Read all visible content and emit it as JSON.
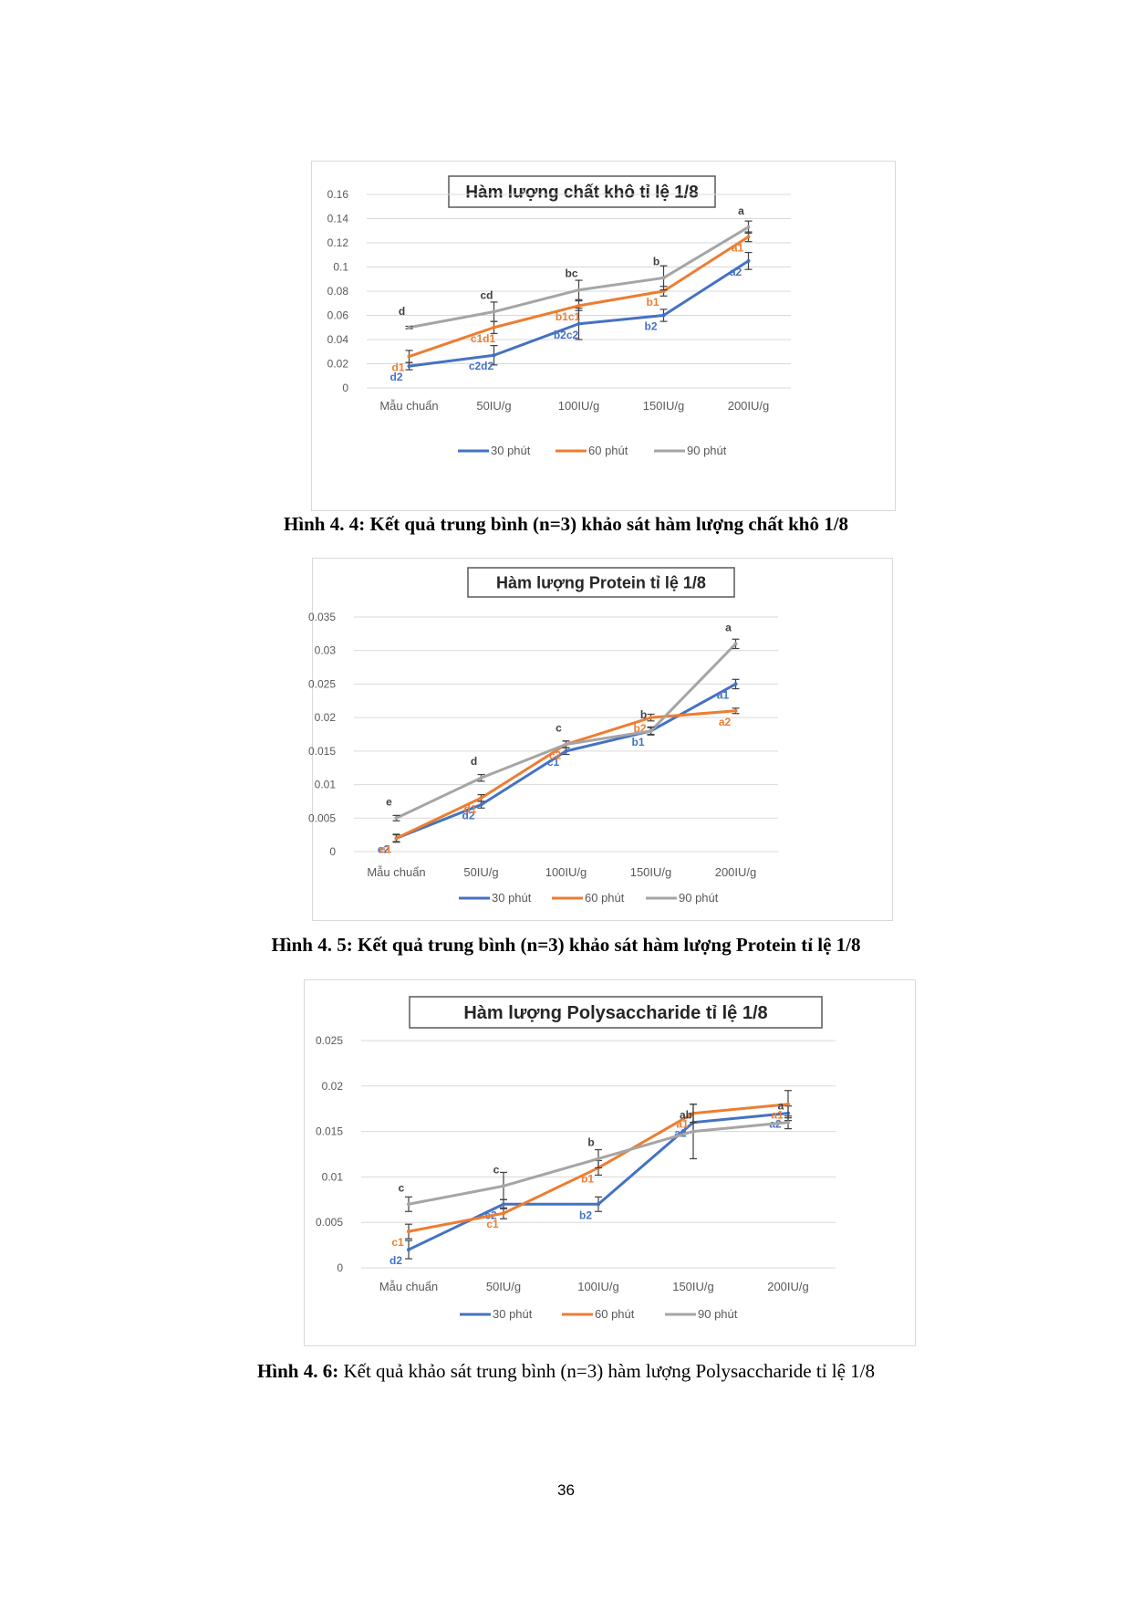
{
  "chart_data": [
    {
      "type": "line",
      "title": "Hàm lượng chất khô tỉ lệ 1/8",
      "categories": [
        "Mẫu chuẩn",
        "50IU/g",
        "100IU/g",
        "150IU/g",
        "200IU/g"
      ],
      "yticks": [
        "0",
        "0.02",
        "0.04",
        "0.06",
        "0.08",
        "0.1",
        "0.12",
        "0.14",
        "0.16"
      ],
      "ylim": [
        0,
        0.16
      ],
      "legend_position": "bottom",
      "series": [
        {
          "name": "30 phút",
          "color": "#4472c4",
          "values": [
            0.018,
            0.027,
            0.053,
            0.06,
            0.105
          ],
          "errors": [
            0.003,
            0.008,
            0.013,
            0.005,
            0.007
          ],
          "labels": [
            "d2",
            "c2d2",
            "b2c2",
            "b2",
            "a2"
          ]
        },
        {
          "name": "60 phút",
          "color": "#ed7d31",
          "values": [
            0.026,
            0.05,
            0.068,
            0.08,
            0.125
          ],
          "errors": [
            0.005,
            0.005,
            0.004,
            0.004,
            0.004
          ],
          "labels": [
            "d1",
            "c1d1",
            "b1c1",
            "b1",
            "a1"
          ]
        },
        {
          "name": "90 phút",
          "color": "#a5a5a5",
          "values": [
            0.05,
            0.063,
            0.081,
            0.091,
            0.133
          ],
          "errors": [
            0.001,
            0.008,
            0.008,
            0.01,
            0.005
          ],
          "labels": [
            "d",
            "cd",
            "bc",
            "b",
            "a"
          ]
        }
      ]
    },
    {
      "type": "line",
      "title": "Hàm lượng Protein tỉ lệ 1/8",
      "categories": [
        "Mẫu chuẩn",
        "50IU/g",
        "100IU/g",
        "150IU/g",
        "200IU/g"
      ],
      "yticks": [
        "0",
        "0.005",
        "0.01",
        "0.015",
        "0.02",
        "0.025",
        "0.03",
        "0.035"
      ],
      "ylim": [
        0,
        0.035
      ],
      "legend_position": "bottom",
      "series": [
        {
          "name": "30 phút",
          "color": "#4472c4",
          "values": [
            0.002,
            0.007,
            0.015,
            0.018,
            0.025
          ],
          "errors": [
            0.0005,
            0.0005,
            0.0005,
            0.0005,
            0.0007
          ],
          "labels": [
            "e2",
            "d2",
            "c1",
            "b1",
            "a1"
          ]
        },
        {
          "name": "60 phút",
          "color": "#ed7d31",
          "values": [
            0.002,
            0.008,
            0.016,
            0.02,
            0.021
          ],
          "errors": [
            0.0006,
            0.0005,
            0.0005,
            0.0005,
            0.0004
          ],
          "labels": [
            "e1",
            "d1",
            "c2",
            "b2",
            "a2"
          ]
        },
        {
          "name": "90 phút",
          "color": "#a5a5a5",
          "values": [
            0.005,
            0.011,
            0.016,
            0.018,
            0.031
          ],
          "errors": [
            0.0004,
            0.0005,
            0.0005,
            0.0006,
            0.0007
          ],
          "labels": [
            "e",
            "d",
            "c",
            "b",
            "a"
          ]
        }
      ]
    },
    {
      "type": "line",
      "title": "Hàm lượng Polysaccharide tỉ lệ 1/8",
      "categories": [
        "Mẫu chuẩn",
        "50IU/g",
        "100IU/g",
        "150IU/g",
        "200IU/g"
      ],
      "yticks": [
        "0",
        "0.005",
        "0.01",
        "0.015",
        "0.02",
        "0.025"
      ],
      "ylim": [
        0,
        0.025
      ],
      "legend_position": "bottom",
      "series": [
        {
          "name": "30 phút",
          "color": "#4472c4",
          "values": [
            0.002,
            0.007,
            0.007,
            0.016,
            0.017
          ],
          "errors": [
            0.001,
            0.0005,
            0.0008,
            0.001,
            0.0008
          ],
          "labels": [
            "d2",
            "c2",
            "b2",
            "a2",
            "a2"
          ]
        },
        {
          "name": "60 phút",
          "color": "#ed7d31",
          "values": [
            0.004,
            0.006,
            0.011,
            0.017,
            0.018
          ],
          "errors": [
            0.0008,
            0.0006,
            0.0008,
            0.001,
            0.0015
          ],
          "labels": [
            "c1",
            "c1",
            "b1",
            "a1",
            "a1"
          ]
        },
        {
          "name": "90 phút",
          "color": "#a5a5a5",
          "values": [
            0.007,
            0.009,
            0.012,
            0.015,
            0.016
          ],
          "errors": [
            0.0008,
            0.0015,
            0.001,
            0.003,
            0.0007
          ],
          "labels": [
            "c",
            "c",
            "b",
            "ab",
            "a"
          ]
        }
      ]
    }
  ],
  "captions": [
    {
      "prefix": "Hình 4. 4:",
      "text": "Kết quả trung bình (n=3) khảo sát hàm lượng chất khô 1/8"
    },
    {
      "prefix": "Hình 4. 5:",
      "text": "Kết quả trung bình (n=3) khảo sát hàm lượng Protein tỉ lệ 1/8"
    },
    {
      "prefix": "Hình 4. 6:",
      "text": "Kết quả khảo sát trung bình (n=3) hàm lượng Polysaccharide tỉ lệ 1/8"
    }
  ],
  "page_number": "36"
}
